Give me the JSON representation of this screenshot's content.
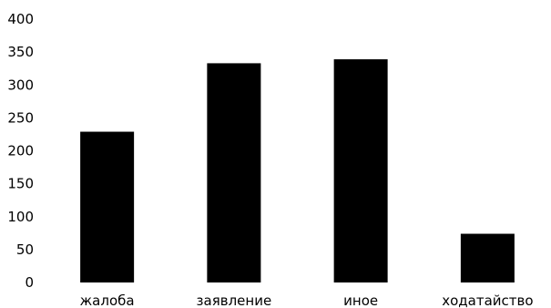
{
  "chart_data": {
    "type": "bar",
    "categories": [
      "жалоба",
      "заявление",
      "иное",
      "ходатайство"
    ],
    "values": [
      229,
      333,
      339,
      74
    ],
    "title": "",
    "xlabel": "",
    "ylabel": "",
    "ylim": [
      0,
      400
    ],
    "yticks": [
      0,
      50,
      100,
      150,
      200,
      250,
      300,
      350,
      400
    ],
    "grid": false,
    "legend": "none",
    "bar_color": "#000000"
  }
}
